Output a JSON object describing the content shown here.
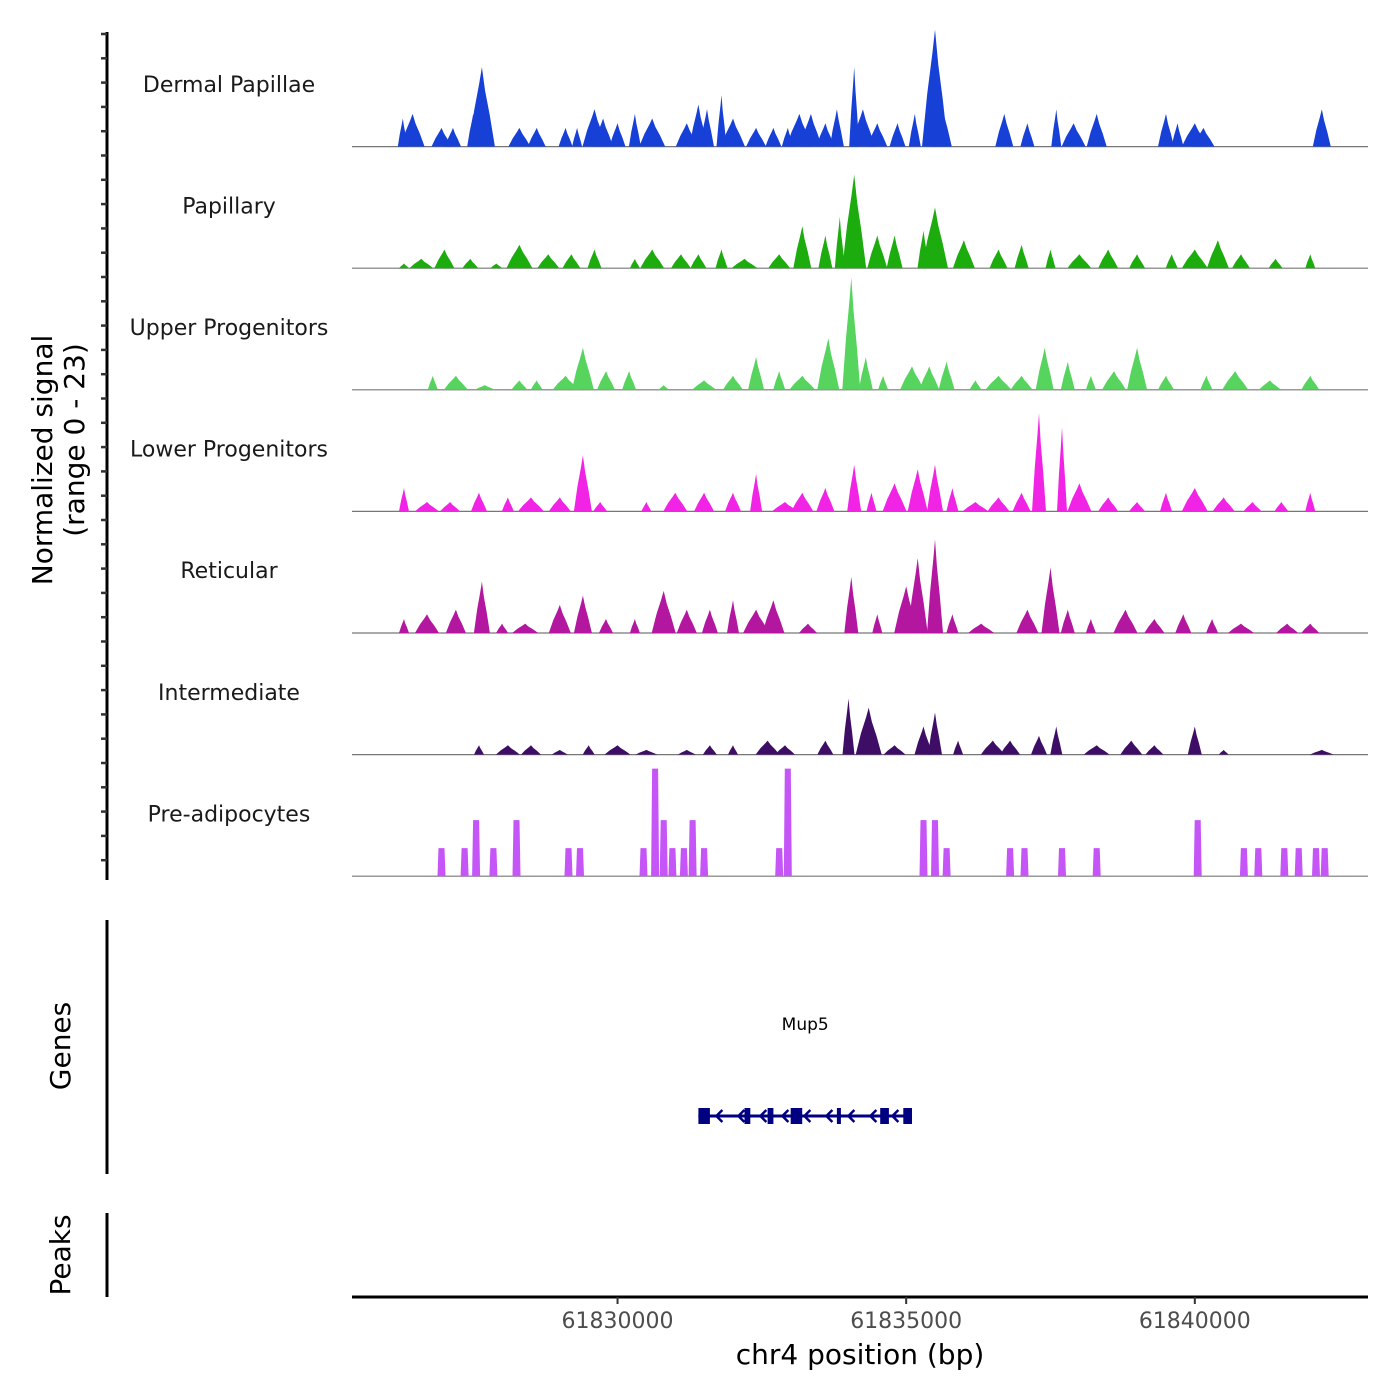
{
  "chart_data": {
    "type": "area",
    "title": "",
    "xlabel": "chr4 position (bp)",
    "ylabel": "Normalized signal\n(range 0 - 23)",
    "ylabel_lines": [
      "Normalized signal",
      "(range 0 - 23)"
    ],
    "ylim": [
      0,
      23
    ],
    "xlim": [
      61825400,
      61843000
    ],
    "x_ticks": [
      61830000,
      61835000,
      61840000
    ],
    "x_tick_labels": [
      "61830000",
      "61835000",
      "61840000"
    ],
    "grid": false,
    "signal_range_note": "range 0 - 23",
    "tracks": [
      {
        "name": "Dermal Papillae",
        "color": "#1640D6",
        "peaks": [
          [
            61826280,
            6
          ],
          [
            61826450,
            7
          ],
          [
            61826950,
            4
          ],
          [
            61827150,
            4
          ],
          [
            61827500,
            7
          ],
          [
            61827650,
            17
          ],
          [
            61828300,
            4
          ],
          [
            61828600,
            4
          ],
          [
            61829100,
            4
          ],
          [
            61829300,
            4
          ],
          [
            61829600,
            8
          ],
          [
            61829750,
            6
          ],
          [
            61830000,
            5
          ],
          [
            61830300,
            7
          ],
          [
            61830600,
            6
          ],
          [
            61831200,
            5
          ],
          [
            61831400,
            9
          ],
          [
            61831550,
            8
          ],
          [
            61831800,
            11
          ],
          [
            61832000,
            6
          ],
          [
            61832400,
            4
          ],
          [
            61832700,
            4
          ],
          [
            61832950,
            4
          ],
          [
            61833150,
            7
          ],
          [
            61833350,
            7
          ],
          [
            61833600,
            5
          ],
          [
            61833800,
            8
          ],
          [
            61834100,
            17
          ],
          [
            61834250,
            8
          ],
          [
            61834500,
            5
          ],
          [
            61834850,
            5
          ],
          [
            61835150,
            7
          ],
          [
            61835500,
            25
          ],
          [
            61835600,
            10
          ],
          [
            61836700,
            7
          ],
          [
            61837100,
            5
          ],
          [
            61837600,
            8
          ],
          [
            61837900,
            5
          ],
          [
            61838300,
            7
          ],
          [
            61839500,
            7
          ],
          [
            61839700,
            5
          ],
          [
            61840000,
            5
          ],
          [
            61840150,
            4
          ],
          [
            61842200,
            8
          ]
        ]
      },
      {
        "name": "Papillary",
        "color": "#1DAC0E",
        "peaks": [
          [
            61826300,
            1
          ],
          [
            61826600,
            2
          ],
          [
            61827000,
            4
          ],
          [
            61827450,
            2
          ],
          [
            61827900,
            1
          ],
          [
            61828300,
            5
          ],
          [
            61828800,
            3
          ],
          [
            61829200,
            3
          ],
          [
            61829600,
            4
          ],
          [
            61830300,
            2
          ],
          [
            61830600,
            4
          ],
          [
            61831100,
            3
          ],
          [
            61831400,
            3
          ],
          [
            61831800,
            4
          ],
          [
            61832200,
            2
          ],
          [
            61832800,
            3
          ],
          [
            61833200,
            9
          ],
          [
            61833600,
            7
          ],
          [
            61833850,
            11
          ],
          [
            61834100,
            20
          ],
          [
            61834500,
            7
          ],
          [
            61834800,
            7
          ],
          [
            61835300,
            8
          ],
          [
            61835500,
            13
          ],
          [
            61836000,
            6
          ],
          [
            61836600,
            4
          ],
          [
            61837000,
            5
          ],
          [
            61837500,
            4
          ],
          [
            61838000,
            3
          ],
          [
            61838500,
            4
          ],
          [
            61839000,
            3
          ],
          [
            61839600,
            3
          ],
          [
            61840000,
            4
          ],
          [
            61840400,
            6
          ],
          [
            61840800,
            3
          ],
          [
            61841400,
            2
          ],
          [
            61842000,
            3
          ]
        ]
      },
      {
        "name": "Upper Progenitors",
        "color": "#56D45E",
        "peaks": [
          [
            61826800,
            3
          ],
          [
            61827200,
            3
          ],
          [
            61827700,
            1
          ],
          [
            61828300,
            2
          ],
          [
            61828600,
            2
          ],
          [
            61829100,
            3
          ],
          [
            61829400,
            9
          ],
          [
            61829800,
            4
          ],
          [
            61830200,
            4
          ],
          [
            61830800,
            1
          ],
          [
            61831500,
            2
          ],
          [
            61832000,
            3
          ],
          [
            61832400,
            7
          ],
          [
            61832800,
            4
          ],
          [
            61833200,
            3
          ],
          [
            61833650,
            11
          ],
          [
            61834050,
            24
          ],
          [
            61834300,
            7
          ],
          [
            61834600,
            3
          ],
          [
            61835100,
            5
          ],
          [
            61835400,
            5
          ],
          [
            61835700,
            6
          ],
          [
            61836200,
            2
          ],
          [
            61836600,
            3
          ],
          [
            61837000,
            3
          ],
          [
            61837400,
            9
          ],
          [
            61837800,
            6
          ],
          [
            61838200,
            3
          ],
          [
            61838600,
            4
          ],
          [
            61839000,
            9
          ],
          [
            61839500,
            3
          ],
          [
            61840200,
            3
          ],
          [
            61840700,
            4
          ],
          [
            61841300,
            2
          ],
          [
            61842000,
            3
          ]
        ]
      },
      {
        "name": "Lower Progenitors",
        "color": "#F124E6",
        "peaks": [
          [
            61826300,
            5
          ],
          [
            61826700,
            2
          ],
          [
            61827100,
            2
          ],
          [
            61827600,
            4
          ],
          [
            61828100,
            3
          ],
          [
            61828500,
            3
          ],
          [
            61829000,
            3
          ],
          [
            61829400,
            12
          ],
          [
            61829700,
            2
          ],
          [
            61830500,
            2
          ],
          [
            61831000,
            4
          ],
          [
            61831500,
            4
          ],
          [
            61832000,
            4
          ],
          [
            61832400,
            8
          ],
          [
            61832900,
            2
          ],
          [
            61833200,
            4
          ],
          [
            61833600,
            5
          ],
          [
            61834100,
            10
          ],
          [
            61834400,
            4
          ],
          [
            61834800,
            6
          ],
          [
            61835200,
            9
          ],
          [
            61835500,
            10
          ],
          [
            61835800,
            5
          ],
          [
            61836200,
            2
          ],
          [
            61836600,
            3
          ],
          [
            61837000,
            4
          ],
          [
            61837300,
            21
          ],
          [
            61837700,
            18
          ],
          [
            61838000,
            6
          ],
          [
            61838500,
            3
          ],
          [
            61839000,
            2
          ],
          [
            61839500,
            4
          ],
          [
            61840000,
            5
          ],
          [
            61840500,
            3
          ],
          [
            61841000,
            2
          ],
          [
            61841500,
            2
          ],
          [
            61842000,
            4
          ]
        ]
      },
      {
        "name": "Reticular",
        "color": "#B3179F",
        "peaks": [
          [
            61826300,
            3
          ],
          [
            61826700,
            4
          ],
          [
            61827200,
            5
          ],
          [
            61827650,
            11
          ],
          [
            61828000,
            2
          ],
          [
            61828400,
            2
          ],
          [
            61829000,
            6
          ],
          [
            61829400,
            8
          ],
          [
            61829800,
            3
          ],
          [
            61830300,
            3
          ],
          [
            61830800,
            9
          ],
          [
            61831200,
            5
          ],
          [
            61831600,
            5
          ],
          [
            61832000,
            7
          ],
          [
            61832400,
            5
          ],
          [
            61832700,
            7
          ],
          [
            61833300,
            2
          ],
          [
            61834050,
            12
          ],
          [
            61834500,
            4
          ],
          [
            61835000,
            10
          ],
          [
            61835200,
            16
          ],
          [
            61835500,
            20
          ],
          [
            61835800,
            4
          ],
          [
            61836300,
            2
          ],
          [
            61837100,
            5
          ],
          [
            61837500,
            14
          ],
          [
            61837800,
            5
          ],
          [
            61838200,
            3
          ],
          [
            61838800,
            5
          ],
          [
            61839300,
            3
          ],
          [
            61839800,
            4
          ],
          [
            61840300,
            3
          ],
          [
            61840800,
            2
          ],
          [
            61841600,
            2
          ],
          [
            61842000,
            2
          ]
        ]
      },
      {
        "name": "Intermediate",
        "color": "#3E0E66",
        "peaks": [
          [
            61827600,
            2
          ],
          [
            61828100,
            2
          ],
          [
            61828500,
            2
          ],
          [
            61829000,
            1
          ],
          [
            61829500,
            2
          ],
          [
            61830000,
            2
          ],
          [
            61830500,
            1
          ],
          [
            61831200,
            1
          ],
          [
            61831600,
            2
          ],
          [
            61832000,
            2
          ],
          [
            61832600,
            3
          ],
          [
            61832900,
            2
          ],
          [
            61833600,
            3
          ],
          [
            61834000,
            12
          ],
          [
            61834350,
            10
          ],
          [
            61834800,
            2
          ],
          [
            61835300,
            6
          ],
          [
            61835500,
            9
          ],
          [
            61835900,
            3
          ],
          [
            61836500,
            3
          ],
          [
            61836800,
            3
          ],
          [
            61837300,
            4
          ],
          [
            61837600,
            6
          ],
          [
            61838300,
            2
          ],
          [
            61838900,
            3
          ],
          [
            61839300,
            2
          ],
          [
            61840000,
            6
          ],
          [
            61840500,
            1
          ],
          [
            61842200,
            1
          ]
        ]
      },
      {
        "name": "Pre-adipocytes",
        "color": "#C555F7",
        "peaks": [
          [
            61826950,
            6
          ],
          [
            61827350,
            6
          ],
          [
            61827550,
            12
          ],
          [
            61827850,
            6
          ],
          [
            61828250,
            12
          ],
          [
            61829150,
            6
          ],
          [
            61829350,
            6
          ],
          [
            61830450,
            6
          ],
          [
            61830650,
            23
          ],
          [
            61830800,
            12
          ],
          [
            61830950,
            6
          ],
          [
            61831150,
            6
          ],
          [
            61831300,
            12
          ],
          [
            61831500,
            6
          ],
          [
            61832800,
            6
          ],
          [
            61832950,
            23
          ],
          [
            61835300,
            12
          ],
          [
            61835500,
            12
          ],
          [
            61835700,
            6
          ],
          [
            61836800,
            6
          ],
          [
            61837050,
            6
          ],
          [
            61837700,
            6
          ],
          [
            61838300,
            6
          ],
          [
            61840050,
            12
          ],
          [
            61840850,
            6
          ],
          [
            61841100,
            6
          ],
          [
            61841550,
            6
          ],
          [
            61841800,
            6
          ],
          [
            61842100,
            6
          ],
          [
            61842250,
            6
          ]
        ]
      }
    ],
    "genes": {
      "title": "Genes",
      "items": [
        {
          "name": "Mup5",
          "start": 61831400,
          "end": 61835100,
          "strand": "-",
          "color": "#000080",
          "exons": [
            [
              61831400,
              61831600
            ],
            [
              61832200,
              61832300
            ],
            [
              61832600,
              61832700
            ],
            [
              61833000,
              61833200
            ],
            [
              61833800,
              61833850
            ],
            [
              61834550,
              61834700
            ],
            [
              61834950,
              61835100
            ]
          ]
        }
      ]
    },
    "peaks_track": {
      "title": "Peaks",
      "items": []
    }
  }
}
